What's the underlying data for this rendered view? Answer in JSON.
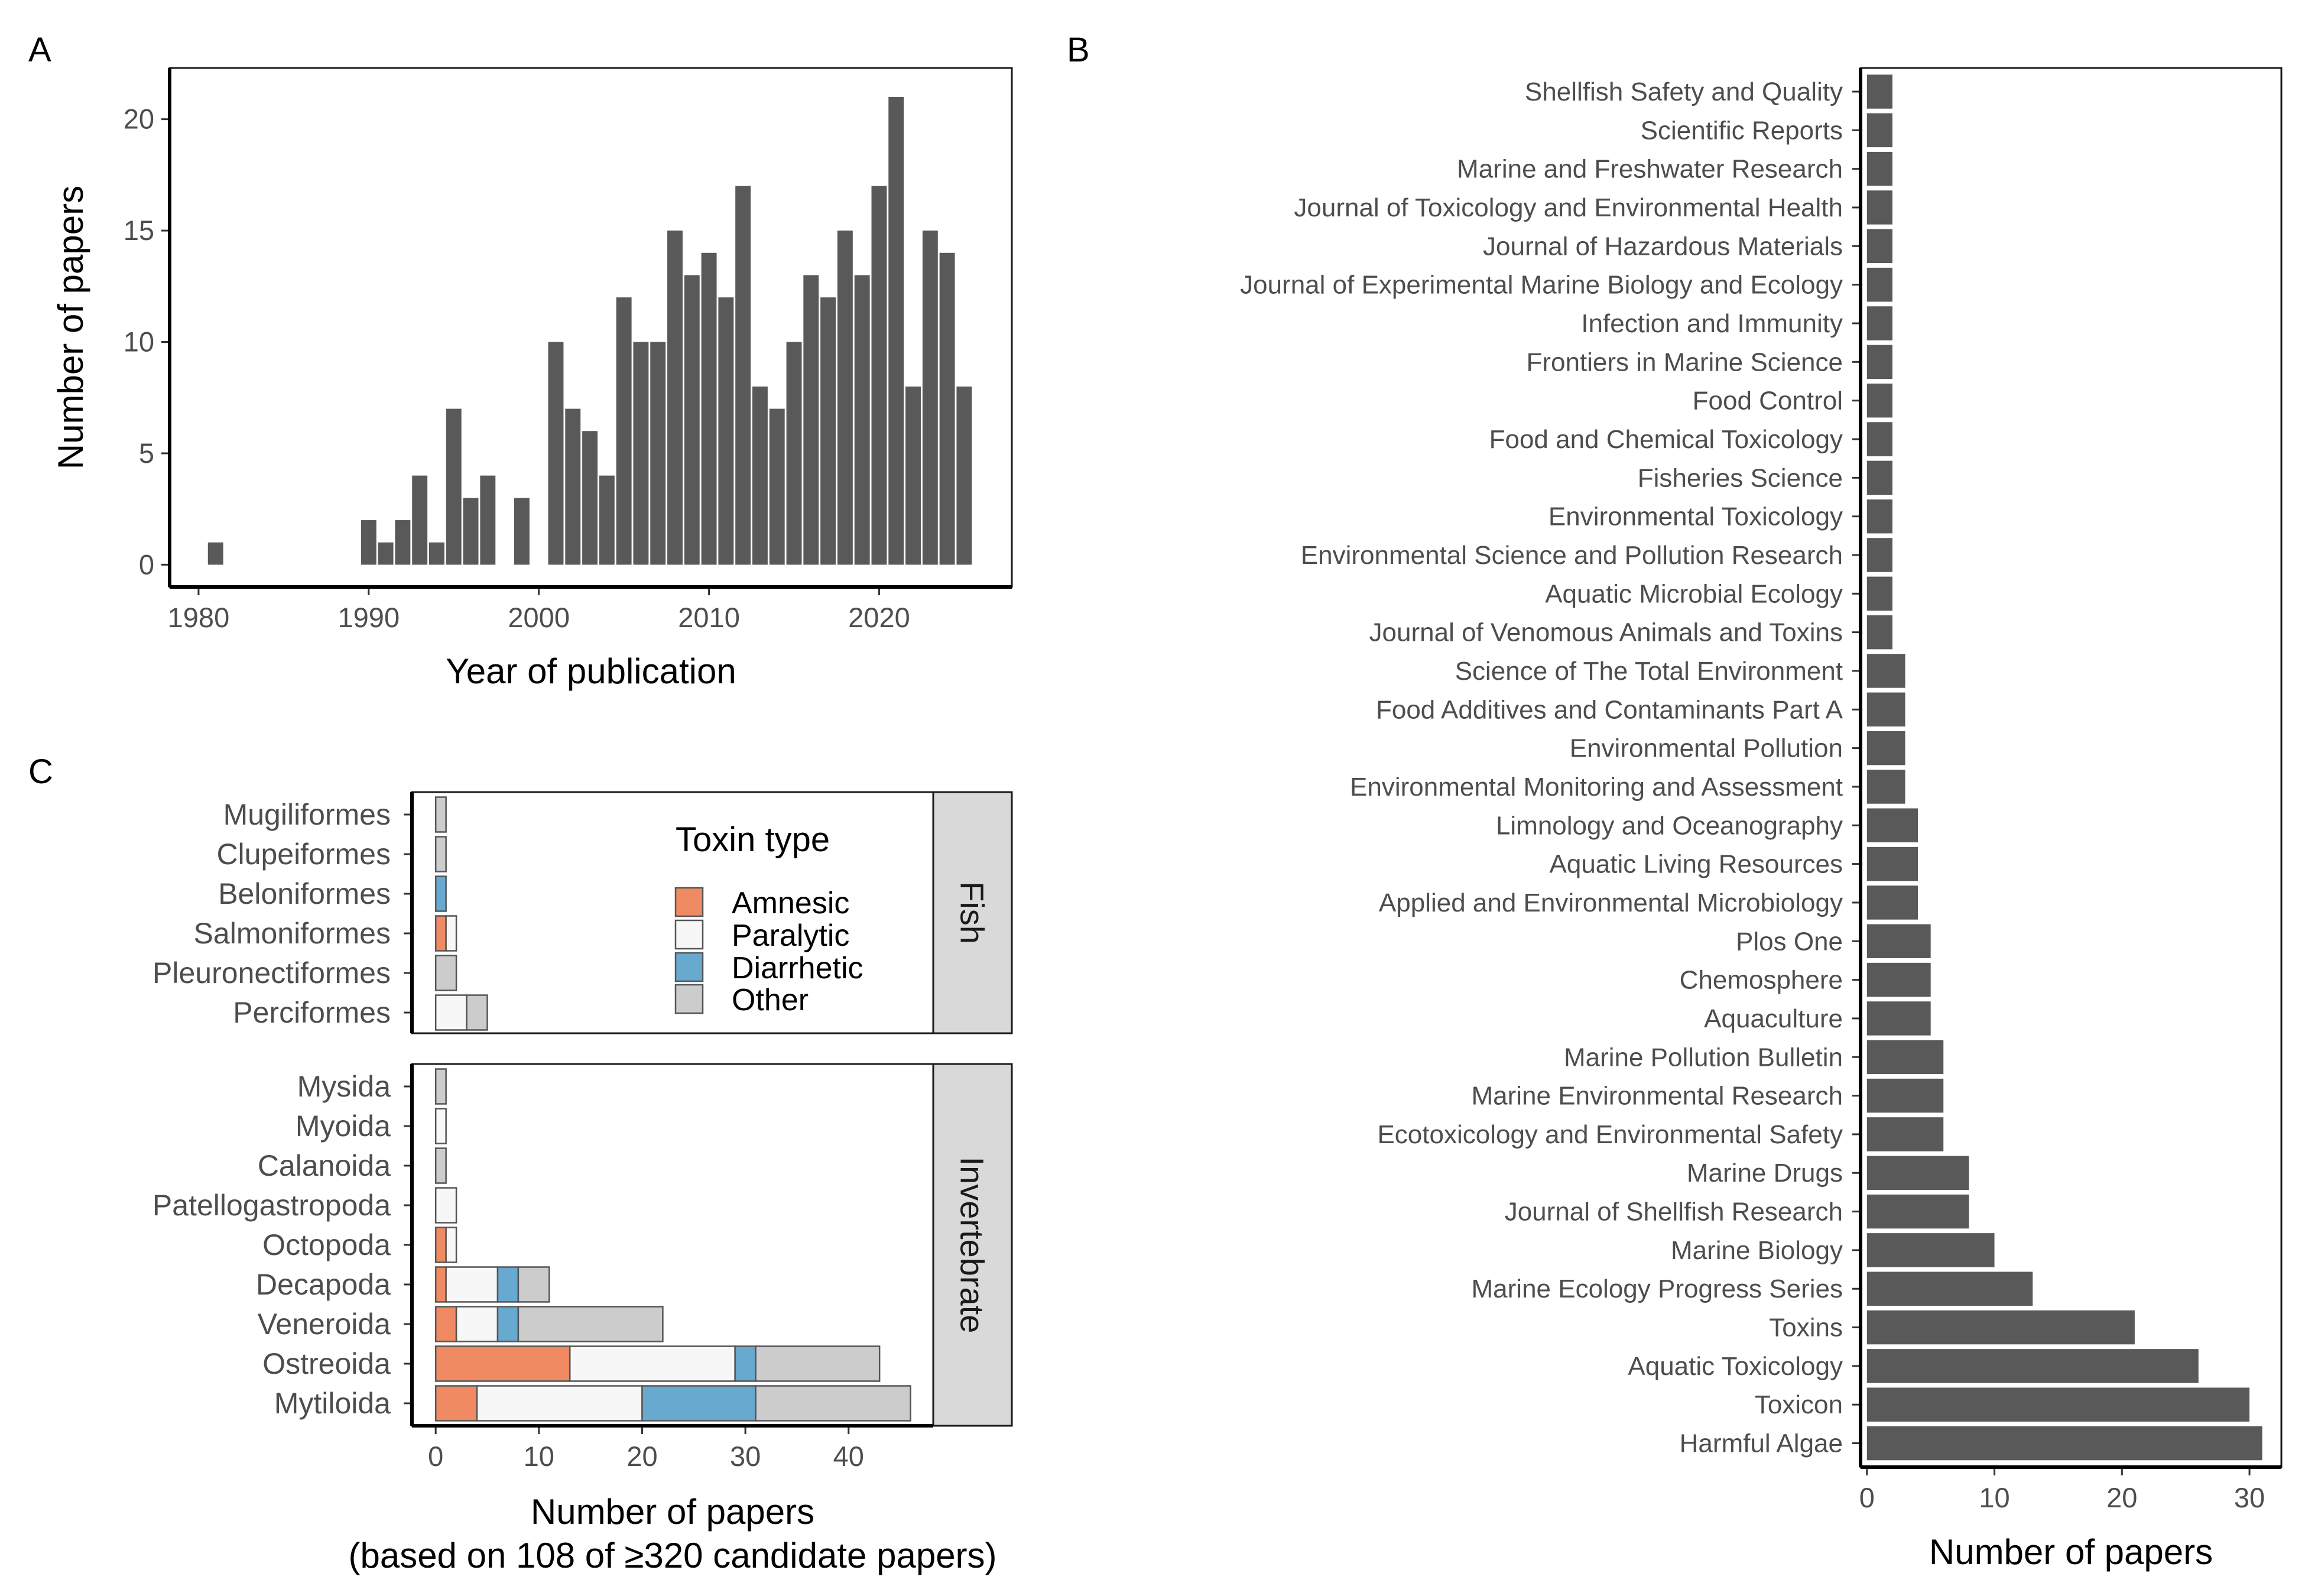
{
  "panels": {
    "a": {
      "letter": "A"
    },
    "b": {
      "letter": "B"
    },
    "c": {
      "letter": "C"
    }
  },
  "chart_data": [
    {
      "id": "A",
      "type": "bar",
      "xlabel": "Year of publication",
      "ylabel": "Number of papers",
      "xlim": [
        1978.3,
        2027.8
      ],
      "ylim": [
        -1.0,
        22.3
      ],
      "xticks": [
        1980,
        1990,
        2000,
        2010,
        2020
      ],
      "yticks": [
        0,
        5,
        10,
        15,
        20
      ],
      "grid": false,
      "x": [
        1981,
        1990,
        1991,
        1992,
        1993,
        1994,
        1995,
        1996,
        1997,
        1999,
        2001,
        2002,
        2003,
        2004,
        2005,
        2006,
        2007,
        2008,
        2009,
        2010,
        2011,
        2012,
        2013,
        2014,
        2015,
        2016,
        2017,
        2018,
        2019,
        2020,
        2021,
        2022,
        2023,
        2024,
        2025
      ],
      "values": [
        1,
        2,
        1,
        2,
        4,
        1,
        7,
        3,
        4,
        3,
        10,
        7,
        6,
        4,
        12,
        10,
        10,
        15,
        13,
        14,
        12,
        17,
        8,
        7,
        10,
        13,
        12,
        15,
        13,
        17,
        21,
        8,
        15,
        14,
        8
      ],
      "color": "#595959"
    },
    {
      "id": "B",
      "type": "bar",
      "orientation": "horizontal",
      "xlabel": "Number of papers",
      "ylabel": "",
      "xlim": [
        -0.5,
        32.5
      ],
      "xticks": [
        0,
        10,
        20,
        30
      ],
      "grid": false,
      "categories": [
        "Shellfish Safety and Quality",
        "Scientific Reports",
        "Marine and Freshwater Research",
        "Journal of Toxicology and Environmental Health",
        "Journal of Hazardous Materials",
        "Journal of Experimental Marine Biology and Ecology",
        "Infection and Immunity",
        "Frontiers in Marine Science",
        "Food Control",
        "Food and Chemical Toxicology",
        "Fisheries Science",
        "Environmental Toxicology",
        "Environmental Science and Pollution Research",
        "Aquatic Microbial Ecology",
        "Journal of Venomous Animals and Toxins",
        "Science of The Total Environment",
        "Food Additives and Contaminants Part A",
        "Environmental Pollution",
        "Environmental Monitoring and Assessment",
        "Limnology and Oceanography",
        "Aquatic Living Resources",
        "Applied and Environmental Microbiology",
        "Plos One",
        "Chemosphere",
        "Aquaculture",
        "Marine Pollution Bulletin",
        "Marine Environmental Research",
        "Ecotoxicology and Environmental Safety",
        "Marine Drugs",
        "Journal of Shellfish Research",
        "Marine Biology",
        "Marine Ecology Progress Series",
        "Toxins",
        "Aquatic Toxicology",
        "Toxicon",
        "Harmful Algae"
      ],
      "values": [
        2,
        2,
        2,
        2,
        2,
        2,
        2,
        2,
        2,
        2,
        2,
        2,
        2,
        2,
        2,
        3,
        3,
        3,
        3,
        4,
        4,
        4,
        5,
        5,
        5,
        6,
        6,
        6,
        8,
        8,
        10,
        13,
        21,
        26,
        30,
        31
      ],
      "color": "#595959"
    },
    {
      "id": "C",
      "type": "bar",
      "orientation": "horizontal",
      "stacked": true,
      "xlabel": "Number of papers",
      "xlabel_note": "(based on 108 of ≥320 candidate papers)",
      "xlim": [
        -2.3,
        48.2
      ],
      "xticks": [
        0,
        10,
        20,
        30,
        40
      ],
      "grid": false,
      "legend": {
        "title": "Toxin type",
        "position": "top-right",
        "entries": [
          "Amnesic",
          "Paralytic",
          "Diarrhetic",
          "Other"
        ]
      },
      "series_colors": {
        "Amnesic": "#ef8a62",
        "Paralytic": "#f7f7f7",
        "Diarrhetic": "#67a9cf",
        "Other": "#cccccc"
      },
      "facets": [
        {
          "label": "Fish",
          "categories": [
            "Mugiliformes",
            "Clupeiformes",
            "Beloniformes",
            "Salmoniformes",
            "Pleuronectiformes",
            "Perciformes"
          ],
          "series": [
            {
              "name": "Amnesic",
              "values": [
                0,
                0,
                0,
                1,
                0,
                0
              ]
            },
            {
              "name": "Paralytic",
              "values": [
                0,
                0,
                0,
                1,
                0,
                3
              ]
            },
            {
              "name": "Diarrhetic",
              "values": [
                0,
                0,
                1,
                0,
                0,
                0
              ]
            },
            {
              "name": "Other",
              "values": [
                1,
                1,
                0,
                0,
                2,
                2
              ]
            }
          ]
        },
        {
          "label": "Invertebrate",
          "categories": [
            "Mysida",
            "Myoida",
            "Calanoida",
            "Patellogastropoda",
            "Octopoda",
            "Decapoda",
            "Veneroida",
            "Ostreoida",
            "Mytiloida"
          ],
          "series": [
            {
              "name": "Amnesic",
              "values": [
                0,
                0,
                0,
                0,
                1,
                1,
                2,
                13,
                4
              ]
            },
            {
              "name": "Paralytic",
              "values": [
                0,
                1,
                0,
                2,
                1,
                5,
                4,
                16,
                16
              ]
            },
            {
              "name": "Diarrhetic",
              "values": [
                0,
                0,
                0,
                0,
                0,
                2,
                2,
                2,
                11
              ]
            },
            {
              "name": "Other",
              "values": [
                1,
                0,
                1,
                0,
                0,
                3,
                14,
                12,
                15
              ]
            }
          ]
        }
      ]
    }
  ]
}
